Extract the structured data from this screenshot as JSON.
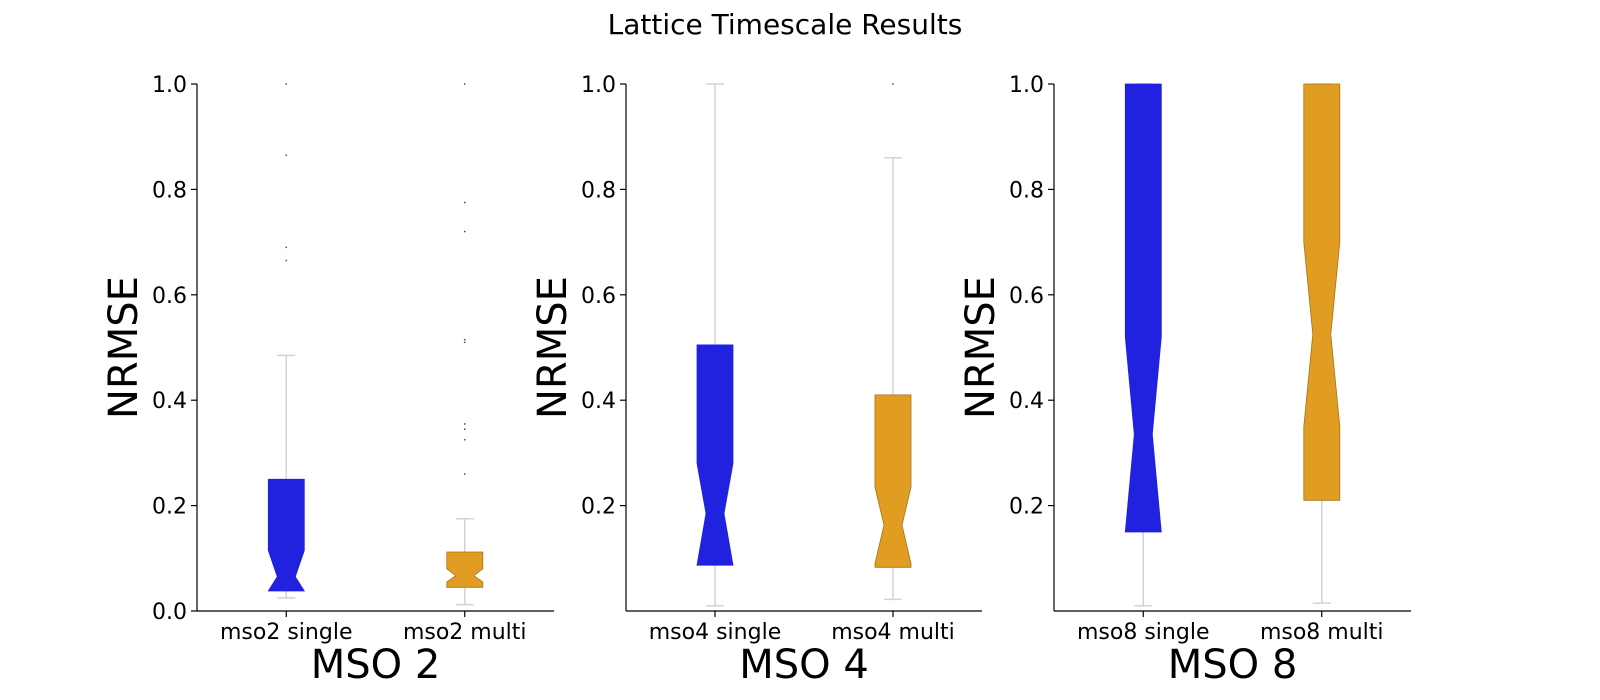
{
  "title": "Lattice Timescale Results",
  "colors": {
    "single": "#2121e0",
    "multi": "#e09d21",
    "whisker": "#d3d3d3",
    "axis": "#000000"
  },
  "chart_data": [
    {
      "type": "box",
      "xlabel": "MSO 2",
      "ylabel": "NRMSE",
      "ylim": [
        0,
        1.0
      ],
      "yticks": [
        "0.0",
        "0.2",
        "0.4",
        "0.6",
        "0.8",
        "1.0"
      ],
      "ytick_values": [
        0,
        0.2,
        0.4,
        0.6,
        0.8,
        1.0
      ],
      "categories": [
        "mso2 single",
        "mso2 multi"
      ],
      "boxes": [
        {
          "label": "mso2 single",
          "q1": 0.038,
          "median": 0.065,
          "q3": 0.25,
          "notch_low": 0.038,
          "notch_high": 0.115,
          "whisker_low": 0.025,
          "whisker_high": 0.485,
          "outliers": [
            0.665,
            0.69,
            0.865,
            1.0
          ],
          "color": "single"
        },
        {
          "label": "mso2 multi",
          "q1": 0.045,
          "median": 0.067,
          "q3": 0.112,
          "notch_low": 0.055,
          "notch_high": 0.08,
          "whisker_low": 0.012,
          "whisker_high": 0.175,
          "outliers": [
            0.26,
            0.325,
            0.345,
            0.355,
            0.51,
            0.515,
            0.72,
            0.775,
            1.0
          ],
          "color": "multi"
        }
      ]
    },
    {
      "type": "box",
      "xlabel": "MSO 4",
      "ylabel": "NRMSE",
      "ylim": [
        0,
        1.0
      ],
      "yticks": [
        "0.2",
        "0.4",
        "0.6",
        "0.8",
        "1.0"
      ],
      "ytick_values": [
        0.2,
        0.4,
        0.6,
        0.8,
        1.0
      ],
      "categories": [
        "mso4 single",
        "mso4 multi"
      ],
      "boxes": [
        {
          "label": "mso4 single",
          "q1": 0.087,
          "median": 0.185,
          "q3": 0.505,
          "notch_low": 0.087,
          "notch_high": 0.28,
          "whisker_low": 0.01,
          "whisker_high": 1.0,
          "outliers": [],
          "color": "single"
        },
        {
          "label": "mso4 multi",
          "q1": 0.083,
          "median": 0.163,
          "q3": 0.41,
          "notch_low": 0.09,
          "notch_high": 0.235,
          "whisker_low": 0.022,
          "whisker_high": 0.86,
          "outliers": [
            1.0
          ],
          "color": "multi"
        }
      ]
    },
    {
      "type": "box",
      "xlabel": "MSO 8",
      "ylabel": "NRMSE",
      "ylim": [
        0,
        1.0
      ],
      "yticks": [
        "0.2",
        "0.4",
        "0.6",
        "0.8",
        "1.0"
      ],
      "ytick_values": [
        0.2,
        0.4,
        0.6,
        0.8,
        1.0
      ],
      "categories": [
        "mso8 single",
        "mso8 multi"
      ],
      "boxes": [
        {
          "label": "mso8 single",
          "q1": 0.15,
          "median": 0.335,
          "q3": 1.0,
          "notch_low": 0.15,
          "notch_high": 0.52,
          "whisker_low": 0.01,
          "whisker_high": 1.0,
          "outliers": [],
          "color": "single"
        },
        {
          "label": "mso8 multi",
          "q1": 0.21,
          "median": 0.525,
          "q3": 1.0,
          "notch_low": 0.35,
          "notch_high": 0.7,
          "whisker_low": 0.015,
          "whisker_high": 1.0,
          "outliers": [],
          "color": "multi"
        }
      ]
    }
  ]
}
